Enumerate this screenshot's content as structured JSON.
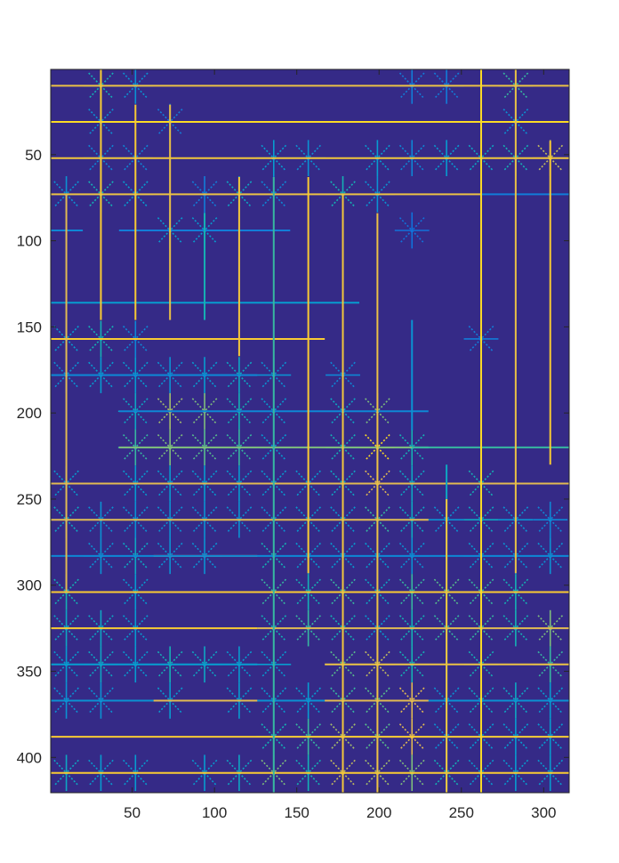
{
  "chart_data": {
    "type": "heatmap",
    "title": "",
    "xlabel": "",
    "ylabel": "",
    "xlim": [
      0.5,
      315.5
    ],
    "ylim": [
      0.5,
      420.5
    ],
    "y_direction": "reversed",
    "x_ticks": [
      50,
      100,
      150,
      200,
      250,
      300
    ],
    "y_ticks": [
      50,
      100,
      150,
      200,
      250,
      300,
      350,
      400
    ],
    "colormap": "parula",
    "background_color": "#352a87",
    "grid": false,
    "legend": "none",
    "description_of_pattern": "star/asterisk shaped spikes centered on a regular grid of nodes with long horizontal and vertical line segments",
    "node_cols_x": [
      10,
      31,
      52,
      73,
      94,
      115,
      136,
      157,
      178,
      199,
      220,
      241,
      262,
      283,
      304
    ],
    "node_rows_y": [
      10,
      31,
      52,
      73,
      94,
      115,
      136,
      157,
      178,
      199,
      220,
      241,
      262,
      283,
      304,
      325,
      346,
      367,
      388,
      409
    ],
    "stars": [
      {
        "x": 31,
        "y": 10,
        "v": 0.55
      },
      {
        "x": 52,
        "y": 10,
        "v": 0.4
      },
      {
        "x": 220,
        "y": 10,
        "v": 0.3
      },
      {
        "x": 241,
        "y": 10,
        "v": 0.3
      },
      {
        "x": 283,
        "y": 10,
        "v": 0.6
      },
      {
        "x": 31,
        "y": 31,
        "v": 0.4
      },
      {
        "x": 73,
        "y": 31,
        "v": 0.3
      },
      {
        "x": 283,
        "y": 31,
        "v": 0.4
      },
      {
        "x": 31,
        "y": 52,
        "v": 0.35
      },
      {
        "x": 52,
        "y": 52,
        "v": 0.35
      },
      {
        "x": 136,
        "y": 52,
        "v": 0.45
      },
      {
        "x": 157,
        "y": 52,
        "v": 0.4
      },
      {
        "x": 199,
        "y": 52,
        "v": 0.45
      },
      {
        "x": 220,
        "y": 52,
        "v": 0.35
      },
      {
        "x": 241,
        "y": 52,
        "v": 0.45
      },
      {
        "x": 262,
        "y": 52,
        "v": 0.5
      },
      {
        "x": 283,
        "y": 52,
        "v": 0.55
      },
      {
        "x": 304,
        "y": 52,
        "v": 0.8
      },
      {
        "x": 10,
        "y": 73,
        "v": 0.4
      },
      {
        "x": 31,
        "y": 73,
        "v": 0.55
      },
      {
        "x": 52,
        "y": 73,
        "v": 0.45
      },
      {
        "x": 94,
        "y": 73,
        "v": 0.3
      },
      {
        "x": 115,
        "y": 73,
        "v": 0.5
      },
      {
        "x": 136,
        "y": 73,
        "v": 0.35
      },
      {
        "x": 178,
        "y": 73,
        "v": 0.55
      },
      {
        "x": 199,
        "y": 73,
        "v": 0.4
      },
      {
        "x": 73,
        "y": 94,
        "v": 0.45
      },
      {
        "x": 94,
        "y": 94,
        "v": 0.45
      },
      {
        "x": 220,
        "y": 94,
        "v": 0.25
      },
      {
        "x": 10,
        "y": 157,
        "v": 0.45
      },
      {
        "x": 31,
        "y": 157,
        "v": 0.55
      },
      {
        "x": 52,
        "y": 157,
        "v": 0.35
      },
      {
        "x": 262,
        "y": 157,
        "v": 0.3
      },
      {
        "x": 10,
        "y": 178,
        "v": 0.4
      },
      {
        "x": 31,
        "y": 178,
        "v": 0.45
      },
      {
        "x": 52,
        "y": 178,
        "v": 0.45
      },
      {
        "x": 73,
        "y": 178,
        "v": 0.4
      },
      {
        "x": 94,
        "y": 178,
        "v": 0.45
      },
      {
        "x": 115,
        "y": 178,
        "v": 0.5
      },
      {
        "x": 136,
        "y": 178,
        "v": 0.4
      },
      {
        "x": 178,
        "y": 178,
        "v": 0.35
      },
      {
        "x": 52,
        "y": 199,
        "v": 0.5
      },
      {
        "x": 73,
        "y": 199,
        "v": 0.75
      },
      {
        "x": 94,
        "y": 199,
        "v": 0.7
      },
      {
        "x": 115,
        "y": 199,
        "v": 0.55
      },
      {
        "x": 136,
        "y": 199,
        "v": 0.45
      },
      {
        "x": 178,
        "y": 199,
        "v": 0.5
      },
      {
        "x": 199,
        "y": 199,
        "v": 0.7
      },
      {
        "x": 52,
        "y": 220,
        "v": 0.6
      },
      {
        "x": 73,
        "y": 220,
        "v": 0.7
      },
      {
        "x": 94,
        "y": 220,
        "v": 0.65
      },
      {
        "x": 115,
        "y": 220,
        "v": 0.6
      },
      {
        "x": 136,
        "y": 220,
        "v": 0.45
      },
      {
        "x": 178,
        "y": 220,
        "v": 0.55
      },
      {
        "x": 199,
        "y": 220,
        "v": 0.95
      },
      {
        "x": 220,
        "y": 220,
        "v": 0.55
      },
      {
        "x": 10,
        "y": 241,
        "v": 0.45
      },
      {
        "x": 52,
        "y": 241,
        "v": 0.45
      },
      {
        "x": 73,
        "y": 241,
        "v": 0.45
      },
      {
        "x": 94,
        "y": 241,
        "v": 0.45
      },
      {
        "x": 115,
        "y": 241,
        "v": 0.45
      },
      {
        "x": 136,
        "y": 241,
        "v": 0.45
      },
      {
        "x": 157,
        "y": 241,
        "v": 0.45
      },
      {
        "x": 178,
        "y": 241,
        "v": 0.5
      },
      {
        "x": 199,
        "y": 241,
        "v": 0.85
      },
      {
        "x": 220,
        "y": 241,
        "v": 0.5
      },
      {
        "x": 262,
        "y": 241,
        "v": 0.55
      },
      {
        "x": 10,
        "y": 262,
        "v": 0.5
      },
      {
        "x": 31,
        "y": 262,
        "v": 0.4
      },
      {
        "x": 52,
        "y": 262,
        "v": 0.4
      },
      {
        "x": 73,
        "y": 262,
        "v": 0.4
      },
      {
        "x": 94,
        "y": 262,
        "v": 0.4
      },
      {
        "x": 115,
        "y": 262,
        "v": 0.4
      },
      {
        "x": 136,
        "y": 262,
        "v": 0.4
      },
      {
        "x": 157,
        "y": 262,
        "v": 0.45
      },
      {
        "x": 178,
        "y": 262,
        "v": 0.45
      },
      {
        "x": 199,
        "y": 262,
        "v": 0.6
      },
      {
        "x": 220,
        "y": 262,
        "v": 0.5
      },
      {
        "x": 241,
        "y": 262,
        "v": 0.4
      },
      {
        "x": 262,
        "y": 262,
        "v": 0.5
      },
      {
        "x": 283,
        "y": 262,
        "v": 0.4
      },
      {
        "x": 304,
        "y": 262,
        "v": 0.35
      },
      {
        "x": 31,
        "y": 283,
        "v": 0.4
      },
      {
        "x": 52,
        "y": 283,
        "v": 0.5
      },
      {
        "x": 73,
        "y": 283,
        "v": 0.4
      },
      {
        "x": 94,
        "y": 283,
        "v": 0.4
      },
      {
        "x": 136,
        "y": 283,
        "v": 0.55
      },
      {
        "x": 157,
        "y": 283,
        "v": 0.45
      },
      {
        "x": 178,
        "y": 283,
        "v": 0.45
      },
      {
        "x": 199,
        "y": 283,
        "v": 0.45
      },
      {
        "x": 220,
        "y": 283,
        "v": 0.4
      },
      {
        "x": 262,
        "y": 283,
        "v": 0.45
      },
      {
        "x": 283,
        "y": 283,
        "v": 0.4
      },
      {
        "x": 304,
        "y": 283,
        "v": 0.4
      },
      {
        "x": 10,
        "y": 304,
        "v": 0.55
      },
      {
        "x": 52,
        "y": 304,
        "v": 0.45
      },
      {
        "x": 136,
        "y": 304,
        "v": 0.6
      },
      {
        "x": 157,
        "y": 304,
        "v": 0.55
      },
      {
        "x": 178,
        "y": 304,
        "v": 0.6
      },
      {
        "x": 199,
        "y": 304,
        "v": 0.5
      },
      {
        "x": 220,
        "y": 304,
        "v": 0.6
      },
      {
        "x": 241,
        "y": 304,
        "v": 0.65
      },
      {
        "x": 262,
        "y": 304,
        "v": 0.6
      },
      {
        "x": 283,
        "y": 304,
        "v": 0.55
      },
      {
        "x": 10,
        "y": 325,
        "v": 0.5
      },
      {
        "x": 31,
        "y": 325,
        "v": 0.5
      },
      {
        "x": 52,
        "y": 325,
        "v": 0.45
      },
      {
        "x": 136,
        "y": 325,
        "v": 0.55
      },
      {
        "x": 157,
        "y": 325,
        "v": 0.6
      },
      {
        "x": 178,
        "y": 325,
        "v": 0.55
      },
      {
        "x": 199,
        "y": 325,
        "v": 0.45
      },
      {
        "x": 220,
        "y": 325,
        "v": 0.55
      },
      {
        "x": 241,
        "y": 325,
        "v": 0.6
      },
      {
        "x": 262,
        "y": 325,
        "v": 0.6
      },
      {
        "x": 283,
        "y": 325,
        "v": 0.55
      },
      {
        "x": 304,
        "y": 325,
        "v": 0.7
      },
      {
        "x": 10,
        "y": 346,
        "v": 0.45
      },
      {
        "x": 31,
        "y": 346,
        "v": 0.5
      },
      {
        "x": 52,
        "y": 346,
        "v": 0.45
      },
      {
        "x": 73,
        "y": 346,
        "v": 0.55
      },
      {
        "x": 94,
        "y": 346,
        "v": 0.5
      },
      {
        "x": 115,
        "y": 346,
        "v": 0.45
      },
      {
        "x": 136,
        "y": 346,
        "v": 0.45
      },
      {
        "x": 178,
        "y": 346,
        "v": 0.65
      },
      {
        "x": 199,
        "y": 346,
        "v": 0.8
      },
      {
        "x": 220,
        "y": 346,
        "v": 0.55
      },
      {
        "x": 262,
        "y": 346,
        "v": 0.55
      },
      {
        "x": 304,
        "y": 346,
        "v": 0.6
      },
      {
        "x": 10,
        "y": 367,
        "v": 0.4
      },
      {
        "x": 31,
        "y": 367,
        "v": 0.4
      },
      {
        "x": 73,
        "y": 367,
        "v": 0.45
      },
      {
        "x": 115,
        "y": 367,
        "v": 0.45
      },
      {
        "x": 136,
        "y": 367,
        "v": 0.45
      },
      {
        "x": 157,
        "y": 367,
        "v": 0.45
      },
      {
        "x": 178,
        "y": 367,
        "v": 0.6
      },
      {
        "x": 199,
        "y": 367,
        "v": 0.65
      },
      {
        "x": 220,
        "y": 367,
        "v": 0.85
      },
      {
        "x": 241,
        "y": 367,
        "v": 0.4
      },
      {
        "x": 262,
        "y": 367,
        "v": 0.5
      },
      {
        "x": 283,
        "y": 367,
        "v": 0.5
      },
      {
        "x": 304,
        "y": 367,
        "v": 0.45
      },
      {
        "x": 136,
        "y": 388,
        "v": 0.55
      },
      {
        "x": 157,
        "y": 388,
        "v": 0.6
      },
      {
        "x": 178,
        "y": 388,
        "v": 0.75
      },
      {
        "x": 199,
        "y": 388,
        "v": 0.65
      },
      {
        "x": 220,
        "y": 388,
        "v": 0.85
      },
      {
        "x": 241,
        "y": 388,
        "v": 0.4
      },
      {
        "x": 262,
        "y": 388,
        "v": 0.45
      },
      {
        "x": 283,
        "y": 388,
        "v": 0.45
      },
      {
        "x": 304,
        "y": 388,
        "v": 0.45
      },
      {
        "x": 10,
        "y": 409,
        "v": 0.5
      },
      {
        "x": 31,
        "y": 409,
        "v": 0.45
      },
      {
        "x": 52,
        "y": 409,
        "v": 0.45
      },
      {
        "x": 94,
        "y": 409,
        "v": 0.45
      },
      {
        "x": 115,
        "y": 409,
        "v": 0.5
      },
      {
        "x": 136,
        "y": 409,
        "v": 0.7
      },
      {
        "x": 157,
        "y": 409,
        "v": 0.55
      },
      {
        "x": 178,
        "y": 409,
        "v": 0.8
      },
      {
        "x": 199,
        "y": 409,
        "v": 0.75
      },
      {
        "x": 220,
        "y": 409,
        "v": 0.7
      },
      {
        "x": 241,
        "y": 409,
        "v": 0.55
      },
      {
        "x": 262,
        "y": 409,
        "v": 0.45
      },
      {
        "x": 283,
        "y": 409,
        "v": 0.45
      },
      {
        "x": 304,
        "y": 409,
        "v": 0.45
      }
    ],
    "h_segments": [
      {
        "y": 10,
        "x1": 0.5,
        "x2": 315.5,
        "v": 0.88
      },
      {
        "y": 31,
        "x1": 0.5,
        "x2": 315.5,
        "v": 0.95
      },
      {
        "y": 52,
        "x1": 0.5,
        "x2": 315.5,
        "v": 0.9
      },
      {
        "y": 73,
        "x1": 0.5,
        "x2": 262,
        "v": 0.88
      },
      {
        "y": 73,
        "x1": 262,
        "x2": 315.5,
        "v": 0.3
      },
      {
        "y": 94,
        "x1": 0.5,
        "x2": 20,
        "v": 0.35
      },
      {
        "y": 94,
        "x1": 42,
        "x2": 146,
        "v": 0.3
      },
      {
        "y": 136,
        "x1": 0.5,
        "x2": 188,
        "v": 0.45
      },
      {
        "y": 157,
        "x1": 0.5,
        "x2": 167,
        "v": 0.92
      },
      {
        "y": 178,
        "x1": 0.5,
        "x2": 126,
        "v": 0.35
      },
      {
        "y": 199,
        "x1": 42,
        "x2": 230,
        "v": 0.35
      },
      {
        "y": 220,
        "x1": 42,
        "x2": 230,
        "v": 0.7
      },
      {
        "y": 220,
        "x1": 220,
        "x2": 315.5,
        "v": 0.6
      },
      {
        "y": 241,
        "x1": 0.5,
        "x2": 315.5,
        "v": 0.85
      },
      {
        "y": 262,
        "x1": 0.5,
        "x2": 230,
        "v": 0.85
      },
      {
        "y": 283,
        "x1": 63,
        "x2": 126,
        "v": 0.85
      },
      {
        "y": 283,
        "x1": 0.5,
        "x2": 315.5,
        "v": 0.35
      },
      {
        "y": 304,
        "x1": 0.5,
        "x2": 315.5,
        "v": 0.92
      },
      {
        "y": 325,
        "x1": 0.5,
        "x2": 126,
        "v": 0.92
      },
      {
        "y": 325,
        "x1": 126,
        "x2": 315.5,
        "v": 0.85
      },
      {
        "y": 346,
        "x1": 0.5,
        "x2": 126,
        "v": 0.45
      },
      {
        "y": 346,
        "x1": 167,
        "x2": 315.5,
        "v": 0.88
      },
      {
        "y": 367,
        "x1": 0.5,
        "x2": 315.5,
        "v": 0.4
      },
      {
        "y": 367,
        "x1": 63,
        "x2": 126,
        "v": 0.85
      },
      {
        "y": 367,
        "x1": 167,
        "x2": 230,
        "v": 0.85
      },
      {
        "y": 388,
        "x1": 0.5,
        "x2": 315.5,
        "v": 0.92
      },
      {
        "y": 409,
        "x1": 0.5,
        "x2": 315.5,
        "v": 0.92
      }
    ],
    "v_segments": [
      {
        "x": 10,
        "y1": 73,
        "y2": 304,
        "v": 0.85
      },
      {
        "x": 31,
        "y1": 0.5,
        "y2": 146,
        "v": 0.92
      },
      {
        "x": 52,
        "y1": 21,
        "y2": 146,
        "v": 0.92
      },
      {
        "x": 73,
        "y1": 21,
        "y2": 146,
        "v": 0.88
      },
      {
        "x": 94,
        "y1": 84,
        "y2": 146,
        "v": 0.55
      },
      {
        "x": 115,
        "y1": 63,
        "y2": 167,
        "v": 0.9
      },
      {
        "x": 136,
        "y1": 63,
        "y2": 420.5,
        "v": 0.6
      },
      {
        "x": 157,
        "y1": 63,
        "y2": 293,
        "v": 0.92
      },
      {
        "x": 178,
        "y1": 73,
        "y2": 420.5,
        "v": 0.9
      },
      {
        "x": 199,
        "y1": 84,
        "y2": 420.5,
        "v": 0.88
      },
      {
        "x": 220,
        "y1": 146,
        "y2": 210,
        "v": 0.4
      },
      {
        "x": 241,
        "y1": 230,
        "y2": 420.5,
        "v": 0.5
      },
      {
        "x": 241,
        "y1": 250,
        "y2": 420.5,
        "v": 0.9
      },
      {
        "x": 262,
        "y1": 0.5,
        "y2": 420.5,
        "v": 0.95
      },
      {
        "x": 283,
        "y1": 0.5,
        "y2": 293,
        "v": 0.88
      },
      {
        "x": 304,
        "y1": 42,
        "y2": 230,
        "v": 0.92
      }
    ]
  }
}
